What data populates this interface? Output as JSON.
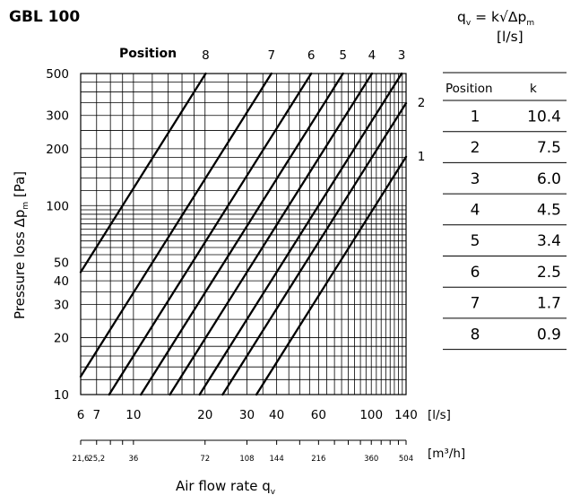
{
  "title": "GBL 100",
  "formula": {
    "q": "q",
    "q_sub": "v",
    "eq": " = k√Δp",
    "p_sub": "m",
    "unit": "[l/s]"
  },
  "chart_data": {
    "type": "line",
    "scale": "log-log",
    "grid": true,
    "xlabel_main": "Air flow rate q",
    "xlabel_sub": "v",
    "ylabel_main": "Pressure loss  Δp",
    "ylabel_sub": "m",
    "ylabel_unit": " [Pa]",
    "position_header": "Position",
    "xlim": [
      6,
      140
    ],
    "ylim": [
      10,
      500
    ],
    "x_ticks": [
      {
        "v": 6,
        "label": "6"
      },
      {
        "v": 7,
        "label": "7"
      },
      {
        "v": 10,
        "label": "10"
      },
      {
        "v": 20,
        "label": "20"
      },
      {
        "v": 30,
        "label": "30"
      },
      {
        "v": 40,
        "label": "40"
      },
      {
        "v": 60,
        "label": "60"
      },
      {
        "v": 100,
        "label": "100"
      },
      {
        "v": 140,
        "label": "140"
      }
    ],
    "x_unit": "[l/s]",
    "y_ticks": [
      {
        "v": 10,
        "label": "10"
      },
      {
        "v": 20,
        "label": "20"
      },
      {
        "v": 30,
        "label": "30"
      },
      {
        "v": 40,
        "label": "40"
      },
      {
        "v": 50,
        "label": "50"
      },
      {
        "v": 100,
        "label": "100"
      },
      {
        "v": 200,
        "label": "200"
      },
      {
        "v": 300,
        "label": "300"
      },
      {
        "v": 500,
        "label": "500"
      }
    ],
    "m3h_ticks": [
      {
        "v": 21.6,
        "label": "21,6"
      },
      {
        "v": 25.2,
        "label": "25,2"
      },
      {
        "v": 36,
        "label": "36"
      },
      {
        "v": 72,
        "label": "72"
      },
      {
        "v": 108,
        "label": "108"
      },
      {
        "v": 144,
        "label": "144"
      },
      {
        "v": 216,
        "label": "216"
      },
      {
        "v": 360,
        "label": "360"
      },
      {
        "v": 504,
        "label": "504"
      }
    ],
    "m3h_unit": "[m³/h]",
    "series": [
      {
        "name": "1",
        "k": 10.4
      },
      {
        "name": "2",
        "k": 7.5
      },
      {
        "name": "3",
        "k": 6.0
      },
      {
        "name": "4",
        "k": 4.5
      },
      {
        "name": "5",
        "k": 3.4
      },
      {
        "name": "6",
        "k": 2.5
      },
      {
        "name": "7",
        "k": 1.7
      },
      {
        "name": "8",
        "k": 0.9
      }
    ]
  },
  "table": {
    "headers": [
      "Position",
      "k"
    ],
    "rows": [
      [
        "1",
        "10.4"
      ],
      [
        "2",
        "7.5"
      ],
      [
        "3",
        "6.0"
      ],
      [
        "4",
        "4.5"
      ],
      [
        "5",
        "3.4"
      ],
      [
        "6",
        "2.5"
      ],
      [
        "7",
        "1.7"
      ],
      [
        "8",
        "0.9"
      ]
    ]
  }
}
